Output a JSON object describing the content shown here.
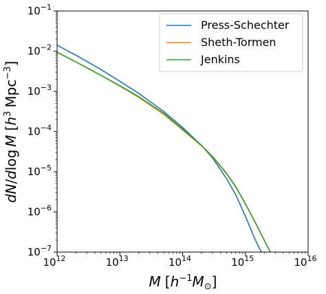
{
  "chart_data": {
    "type": "line",
    "title": "",
    "xlabel": "M [h^-1 M_sun]",
    "ylabel": "dN/dlog M [h^3 Mpc^-3]",
    "xscale": "log",
    "yscale": "log",
    "xlim": [
      1000000000000.0,
      1e+16
    ],
    "ylim": [
      1e-07,
      0.1
    ],
    "x_ticks": [
      {
        "value": 1000000000000.0,
        "base": "10",
        "exp": "12"
      },
      {
        "value": 10000000000000.0,
        "base": "10",
        "exp": "13"
      },
      {
        "value": 100000000000000.0,
        "base": "10",
        "exp": "14"
      },
      {
        "value": 1000000000000000.0,
        "base": "10",
        "exp": "15"
      },
      {
        "value": 1e+16,
        "base": "10",
        "exp": "16"
      }
    ],
    "y_ticks": [
      {
        "value": 1e-07,
        "base": "10",
        "exp": "−7"
      },
      {
        "value": 1e-06,
        "base": "10",
        "exp": "−6"
      },
      {
        "value": 1e-05,
        "base": "10",
        "exp": "−5"
      },
      {
        "value": 0.0001,
        "base": "10",
        "exp": "−4"
      },
      {
        "value": 0.001,
        "base": "10",
        "exp": "−3"
      },
      {
        "value": 0.01,
        "base": "10",
        "exp": "−2"
      },
      {
        "value": 0.1,
        "base": "10",
        "exp": "−1"
      }
    ],
    "grid": false,
    "legend_position": "top-right",
    "series": [
      {
        "name": "Press-Schechter",
        "color": "#1f77b4",
        "x": [
          1000000000000.0,
          2000000000000.0,
          5000000000000.0,
          10000000000000.0,
          20000000000000.0,
          50000000000000.0,
          100000000000000.0,
          200000000000000.0,
          300000000000000.0,
          500000000000000.0,
          700000000000000.0,
          1000000000000000.0,
          1400000000000000.0,
          1800000000000000.0
        ],
        "y": [
          0.0141,
          0.0079,
          0.0035,
          0.00178,
          0.00089,
          0.000316,
          0.000126,
          4.5e-05,
          2.2e-05,
          6.8e-06,
          2.7e-06,
          7.9e-07,
          2.2e-07,
          1e-07
        ]
      },
      {
        "name": "Sheth-Tormen",
        "color": "#ff7f0e",
        "x": [
          1000000000000.0,
          2000000000000.0,
          5000000000000.0,
          10000000000000.0,
          20000000000000.0,
          50000000000000.0,
          100000000000000.0,
          200000000000000.0,
          300000000000000.0,
          500000000000000.0,
          700000000000000.0,
          1000000000000000.0,
          1500000000000000.0,
          2500000000000000.0
        ],
        "y": [
          0.0094,
          0.0054,
          0.0025,
          0.00135,
          0.00071,
          0.000268,
          0.00011,
          4.4e-05,
          2.35e-05,
          8.9e-06,
          4.2e-06,
          1.6e-06,
          4.8e-07,
          1e-07
        ]
      },
      {
        "name": "Jenkins",
        "color": "#2ca02c",
        "x": [
          1000000000000.0,
          2000000000000.0,
          5000000000000.0,
          10000000000000.0,
          20000000000000.0,
          50000000000000.0,
          100000000000000.0,
          200000000000000.0,
          300000000000000.0,
          500000000000000.0,
          700000000000000.0,
          1000000000000000.0,
          1500000000000000.0,
          2500000000000000.0
        ],
        "y": [
          0.0094,
          0.0054,
          0.0025,
          0.00138,
          0.00074,
          0.000285,
          0.000115,
          4.5e-05,
          2.4e-05,
          9.2e-06,
          4.3e-06,
          1.6e-06,
          4.8e-07,
          1e-07
        ]
      }
    ]
  }
}
